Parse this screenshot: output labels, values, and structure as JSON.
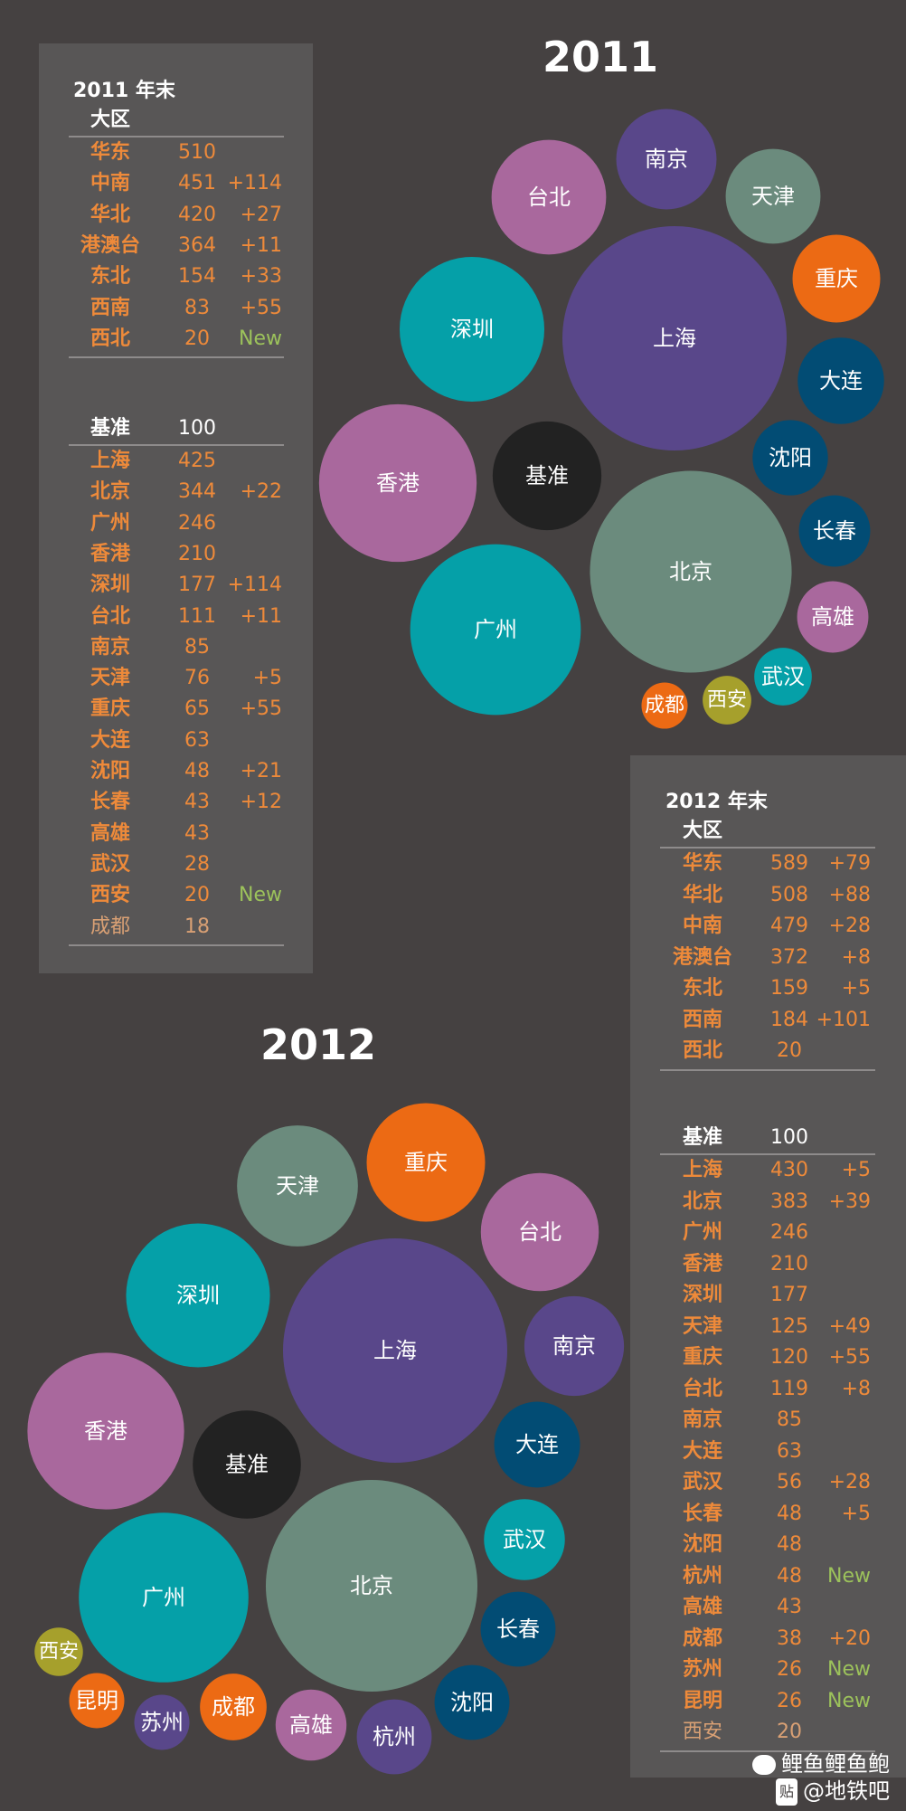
{
  "chart_data": [
    {
      "type": "bubble",
      "title": "2011",
      "stats_title": "2011 年末",
      "region_header": "大区",
      "regions": [
        {
          "name": "华东",
          "value": 510,
          "delta": ""
        },
        {
          "name": "中南",
          "value": 451,
          "delta": "+114"
        },
        {
          "name": "华北",
          "value": 420,
          "delta": "+27"
        },
        {
          "name": "港澳台",
          "value": 364,
          "delta": "+11"
        },
        {
          "name": "东北",
          "value": 154,
          "delta": "+33"
        },
        {
          "name": "西南",
          "value": 83,
          "delta": "+55"
        },
        {
          "name": "西北",
          "value": 20,
          "delta": "New"
        }
      ],
      "city_header": "基准",
      "city_header_value": "100",
      "cities": [
        {
          "name": "上海",
          "value": 425,
          "delta": ""
        },
        {
          "name": "北京",
          "value": 344,
          "delta": "+22"
        },
        {
          "name": "广州",
          "value": 246,
          "delta": ""
        },
        {
          "name": "香港",
          "value": 210,
          "delta": ""
        },
        {
          "name": "深圳",
          "value": 177,
          "delta": "+114"
        },
        {
          "name": "台北",
          "value": 111,
          "delta": "+11"
        },
        {
          "name": "南京",
          "value": 85,
          "delta": ""
        },
        {
          "name": "天津",
          "value": 76,
          "delta": "+5"
        },
        {
          "name": "重庆",
          "value": 65,
          "delta": "+55"
        },
        {
          "name": "大连",
          "value": 63,
          "delta": ""
        },
        {
          "name": "沈阳",
          "value": 48,
          "delta": "+21"
        },
        {
          "name": "长春",
          "value": 43,
          "delta": "+12"
        },
        {
          "name": "高雄",
          "value": 43,
          "delta": ""
        },
        {
          "name": "武汉",
          "value": 28,
          "delta": ""
        },
        {
          "name": "西安",
          "value": 20,
          "delta": "New"
        },
        {
          "name": "成都",
          "value": 18,
          "delta": ""
        }
      ],
      "bubbles": [
        {
          "name": "上海",
          "value": 425,
          "color": "#59478a"
        },
        {
          "name": "北京",
          "value": 344,
          "color": "#6b8b7d"
        },
        {
          "name": "广州",
          "value": 246,
          "color": "#05a0a8"
        },
        {
          "name": "香港",
          "value": 210,
          "color": "#a9689d"
        },
        {
          "name": "深圳",
          "value": 177,
          "color": "#05a0a8"
        },
        {
          "name": "台北",
          "value": 111,
          "color": "#a9689d"
        },
        {
          "name": "基准",
          "value": 100,
          "color": "#222222"
        },
        {
          "name": "南京",
          "value": 85,
          "color": "#59478a"
        },
        {
          "name": "天津",
          "value": 76,
          "color": "#6b8b7d"
        },
        {
          "name": "重庆",
          "value": 65,
          "color": "#ec6a14"
        },
        {
          "name": "大连",
          "value": 63,
          "color": "#024c74"
        },
        {
          "name": "沈阳",
          "value": 48,
          "color": "#024c74"
        },
        {
          "name": "长春",
          "value": 43,
          "color": "#024c74"
        },
        {
          "name": "高雄",
          "value": 43,
          "color": "#a9689d"
        },
        {
          "name": "武汉",
          "value": 28,
          "color": "#05a0a8"
        },
        {
          "name": "西安",
          "value": 20,
          "color": "#a6a02c"
        },
        {
          "name": "成都",
          "value": 18,
          "color": "#ec6a14"
        }
      ]
    },
    {
      "type": "bubble",
      "title": "2012",
      "stats_title": "2012 年末",
      "region_header": "大区",
      "regions": [
        {
          "name": "华东",
          "value": 589,
          "delta": "+79"
        },
        {
          "name": "华北",
          "value": 508,
          "delta": "+88"
        },
        {
          "name": "中南",
          "value": 479,
          "delta": "+28"
        },
        {
          "name": "港澳台",
          "value": 372,
          "delta": "+8"
        },
        {
          "name": "东北",
          "value": 159,
          "delta": "+5"
        },
        {
          "name": "西南",
          "value": 184,
          "delta": "+101"
        },
        {
          "name": "西北",
          "value": 20,
          "delta": ""
        }
      ],
      "city_header": "基准",
      "city_header_value": "100",
      "cities": [
        {
          "name": "上海",
          "value": 430,
          "delta": "+5"
        },
        {
          "name": "北京",
          "value": 383,
          "delta": "+39"
        },
        {
          "name": "广州",
          "value": 246,
          "delta": ""
        },
        {
          "name": "香港",
          "value": 210,
          "delta": ""
        },
        {
          "name": "深圳",
          "value": 177,
          "delta": ""
        },
        {
          "name": "天津",
          "value": 125,
          "delta": "+49"
        },
        {
          "name": "重庆",
          "value": 120,
          "delta": "+55"
        },
        {
          "name": "台北",
          "value": 119,
          "delta": "+8"
        },
        {
          "name": "南京",
          "value": 85,
          "delta": ""
        },
        {
          "name": "大连",
          "value": 63,
          "delta": ""
        },
        {
          "name": "武汉",
          "value": 56,
          "delta": "+28"
        },
        {
          "name": "长春",
          "value": 48,
          "delta": "+5"
        },
        {
          "name": "沈阳",
          "value": 48,
          "delta": ""
        },
        {
          "name": "杭州",
          "value": 48,
          "delta": "New"
        },
        {
          "name": "高雄",
          "value": 43,
          "delta": ""
        },
        {
          "name": "成都",
          "value": 38,
          "delta": "+20"
        },
        {
          "name": "苏州",
          "value": 26,
          "delta": "New"
        },
        {
          "name": "昆明",
          "value": 26,
          "delta": "New"
        },
        {
          "name": "西安",
          "value": 20,
          "delta": ""
        }
      ],
      "bubbles": [
        {
          "name": "上海",
          "value": 430,
          "color": "#59478a"
        },
        {
          "name": "北京",
          "value": 383,
          "color": "#6b8b7d"
        },
        {
          "name": "广州",
          "value": 246,
          "color": "#05a0a8"
        },
        {
          "name": "香港",
          "value": 210,
          "color": "#a9689d"
        },
        {
          "name": "深圳",
          "value": 177,
          "color": "#05a0a8"
        },
        {
          "name": "天津",
          "value": 125,
          "color": "#6b8b7d"
        },
        {
          "name": "重庆",
          "value": 120,
          "color": "#ec6a14"
        },
        {
          "name": "台北",
          "value": 119,
          "color": "#a9689d"
        },
        {
          "name": "基准",
          "value": 100,
          "color": "#222222"
        },
        {
          "name": "南京",
          "value": 85,
          "color": "#59478a"
        },
        {
          "name": "大连",
          "value": 63,
          "color": "#024c74"
        },
        {
          "name": "武汉",
          "value": 56,
          "color": "#05a0a8"
        },
        {
          "name": "长春",
          "value": 48,
          "color": "#024c74"
        },
        {
          "name": "沈阳",
          "value": 48,
          "color": "#024c74"
        },
        {
          "name": "杭州",
          "value": 48,
          "color": "#59478a"
        },
        {
          "name": "高雄",
          "value": 43,
          "color": "#a9689d"
        },
        {
          "name": "成都",
          "value": 38,
          "color": "#ec6a14"
        },
        {
          "name": "苏州",
          "value": 26,
          "color": "#59478a"
        },
        {
          "name": "昆明",
          "value": 26,
          "color": "#ec6a14"
        },
        {
          "name": "西安",
          "value": 20,
          "color": "#a6a02c"
        }
      ]
    }
  ],
  "watermark": {
    "line1": "鲤鱼鲤鱼鲍",
    "line2": "@地铁吧",
    "badge": "贴"
  }
}
